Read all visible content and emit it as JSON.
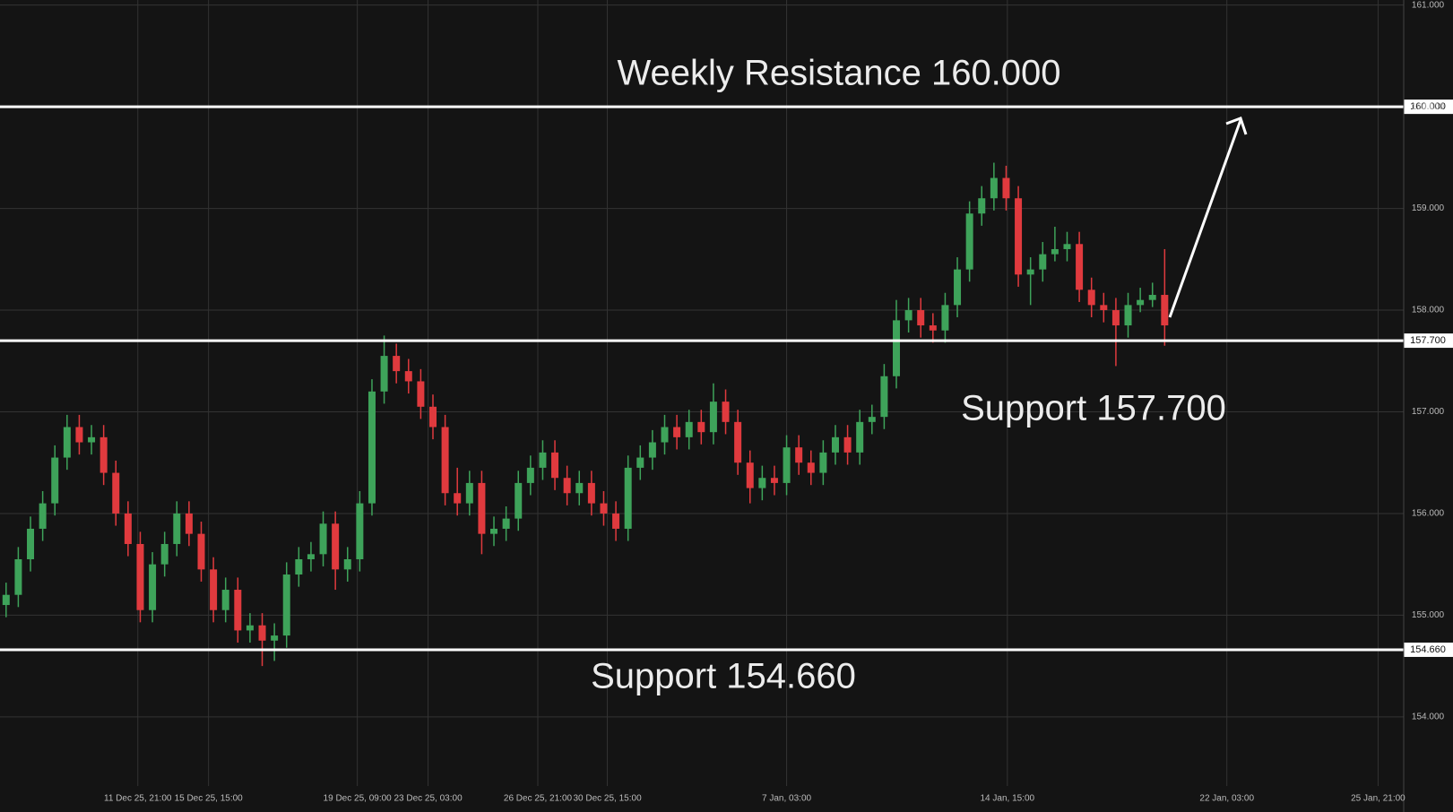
{
  "chart_data": {
    "type": "candlestick",
    "annotations": [
      "Weekly Resistance 160.000",
      "Support 157.700",
      "Support 154.660"
    ],
    "series": [
      {
        "up_color": "#3ea35a",
        "down_color": "#e03a3e",
        "open": [
          155.1,
          155.2,
          155.55,
          155.85,
          156.1,
          156.55,
          156.85,
          156.7,
          156.75,
          156.4,
          156.0,
          155.7,
          155.05,
          155.5,
          155.7,
          156.0,
          155.8,
          155.45,
          155.05,
          155.25,
          154.85,
          154.9,
          154.75,
          154.8,
          155.4,
          155.55,
          155.6,
          155.9,
          155.45,
          155.55,
          156.1,
          157.2,
          157.55,
          157.4,
          157.3,
          157.05,
          156.85,
          156.2,
          156.1,
          156.3,
          155.8,
          155.85,
          155.95,
          156.3,
          156.45,
          156.6,
          156.35,
          156.2,
          156.3,
          156.1,
          156.0,
          155.85,
          156.45,
          156.55,
          156.7,
          156.85,
          156.75,
          156.9,
          156.8,
          157.1,
          156.9,
          156.5,
          156.25,
          156.35,
          156.3,
          156.65,
          156.5,
          156.4,
          156.6,
          156.75,
          156.6,
          156.9,
          156.95,
          157.35,
          157.9,
          158.0,
          157.85,
          157.8,
          158.05,
          158.4,
          158.95,
          159.1,
          159.3,
          159.1,
          158.35,
          158.4,
          158.55,
          158.6,
          158.65,
          158.2,
          158.05,
          158.0,
          157.85,
          158.05,
          158.1,
          158.15
        ],
        "high": [
          155.32,
          155.67,
          155.97,
          156.22,
          156.67,
          156.97,
          156.97,
          156.87,
          156.87,
          156.52,
          156.12,
          155.82,
          155.62,
          155.82,
          156.12,
          156.12,
          155.92,
          155.57,
          155.37,
          155.37,
          155.02,
          155.02,
          154.92,
          155.52,
          155.67,
          155.72,
          156.02,
          156.02,
          155.67,
          156.22,
          157.32,
          157.75,
          157.67,
          157.52,
          157.42,
          157.17,
          156.97,
          156.45,
          156.42,
          156.42,
          155.97,
          156.07,
          156.42,
          156.57,
          156.72,
          156.72,
          156.47,
          156.42,
          156.42,
          156.22,
          156.12,
          156.57,
          156.67,
          156.82,
          156.97,
          156.97,
          157.02,
          157.02,
          157.28,
          157.22,
          157.02,
          156.62,
          156.47,
          156.47,
          156.77,
          156.77,
          156.62,
          156.72,
          156.87,
          156.87,
          157.02,
          157.07,
          157.47,
          158.1,
          158.12,
          158.12,
          157.97,
          158.17,
          158.52,
          159.07,
          159.22,
          159.45,
          159.42,
          159.22,
          158.52,
          158.67,
          158.82,
          158.77,
          158.77,
          158.32,
          158.17,
          158.12,
          158.17,
          158.22,
          158.27,
          158.6
        ],
        "low": [
          154.98,
          155.08,
          155.43,
          155.73,
          155.98,
          156.43,
          156.58,
          156.58,
          156.28,
          155.88,
          155.58,
          154.93,
          154.93,
          155.38,
          155.58,
          155.68,
          155.33,
          154.93,
          154.93,
          154.73,
          154.73,
          154.5,
          154.55,
          154.68,
          155.28,
          155.43,
          155.48,
          155.25,
          155.33,
          155.43,
          155.98,
          157.08,
          157.28,
          157.18,
          156.93,
          156.73,
          156.08,
          155.98,
          155.98,
          155.6,
          155.68,
          155.73,
          155.83,
          156.18,
          156.33,
          156.23,
          156.08,
          156.08,
          155.98,
          155.88,
          155.73,
          155.73,
          156.33,
          156.43,
          156.58,
          156.63,
          156.63,
          156.68,
          156.68,
          156.78,
          156.38,
          156.1,
          156.13,
          156.18,
          156.18,
          156.38,
          156.28,
          156.28,
          156.48,
          156.48,
          156.48,
          156.78,
          156.83,
          157.23,
          157.78,
          157.73,
          157.68,
          157.68,
          157.93,
          158.28,
          158.83,
          158.98,
          158.98,
          158.23,
          158.05,
          158.28,
          158.48,
          158.48,
          158.08,
          157.93,
          157.88,
          157.45,
          157.73,
          157.98,
          158.03,
          157.65
        ],
        "close": [
          155.2,
          155.55,
          155.85,
          156.1,
          156.55,
          156.85,
          156.7,
          156.75,
          156.4,
          156.0,
          155.7,
          155.05,
          155.5,
          155.7,
          156.0,
          155.8,
          155.45,
          155.05,
          155.25,
          154.85,
          154.9,
          154.75,
          154.8,
          155.4,
          155.55,
          155.6,
          155.9,
          155.45,
          155.55,
          156.1,
          157.2,
          157.55,
          157.4,
          157.3,
          157.05,
          156.85,
          156.2,
          156.1,
          156.3,
          155.8,
          155.85,
          155.95,
          156.3,
          156.45,
          156.6,
          156.35,
          156.2,
          156.3,
          156.1,
          156.0,
          155.85,
          156.45,
          156.55,
          156.7,
          156.85,
          156.75,
          156.9,
          156.8,
          157.1,
          156.9,
          156.5,
          156.25,
          156.35,
          156.3,
          156.65,
          156.5,
          156.4,
          156.6,
          156.75,
          156.6,
          156.9,
          156.95,
          157.35,
          157.9,
          158.0,
          157.85,
          157.8,
          158.05,
          158.4,
          158.95,
          159.1,
          159.3,
          159.1,
          158.35,
          158.4,
          158.55,
          158.6,
          158.65,
          158.2,
          158.05,
          158.0,
          157.85,
          158.05,
          158.1,
          158.15,
          157.85
        ]
      }
    ],
    "levels": [
      {
        "value": 160,
        "label": "160.000"
      },
      {
        "value": 157.7,
        "label": "157.700"
      },
      {
        "value": 154.66,
        "label": "154.660"
      }
    ],
    "level_color": "#ffffff",
    "xlim": [
      -0.5,
      114.6
    ],
    "xticks": [
      {
        "value": 10.8,
        "label": "11 Dec 25, 21:00"
      },
      {
        "value": 16.6,
        "label": "15 Dec 25, 15:00"
      },
      {
        "value": 28.8,
        "label": "19 Dec 25, 09:00"
      },
      {
        "value": 34.6,
        "label": "23 Dec 25, 03:00"
      },
      {
        "value": 43.6,
        "label": "26 Dec 25, 21:00"
      },
      {
        "value": 49.3,
        "label": "30 Dec 25, 15:00"
      },
      {
        "value": 64.0,
        "label": "7 Jan, 03:00"
      },
      {
        "value": 82.1,
        "label": "14 Jan, 15:00"
      },
      {
        "value": 100.1,
        "label": "22 Jan, 03:00"
      },
      {
        "value": 112.5,
        "label": "25 Jan, 21:00"
      }
    ],
    "ylim": [
      153.32,
      161.05
    ],
    "yticks": [
      {
        "value": 154,
        "label": "154.000"
      },
      {
        "value": 155,
        "label": "155.000"
      },
      {
        "value": 156,
        "label": "156.000"
      },
      {
        "value": 157,
        "label": "157.000"
      },
      {
        "value": 158,
        "label": "158.000"
      },
      {
        "value": 159,
        "label": "159.000"
      },
      {
        "value": 160,
        "label": "160.000"
      },
      {
        "value": 161,
        "label": "161.000"
      }
    ],
    "grid": true
  }
}
